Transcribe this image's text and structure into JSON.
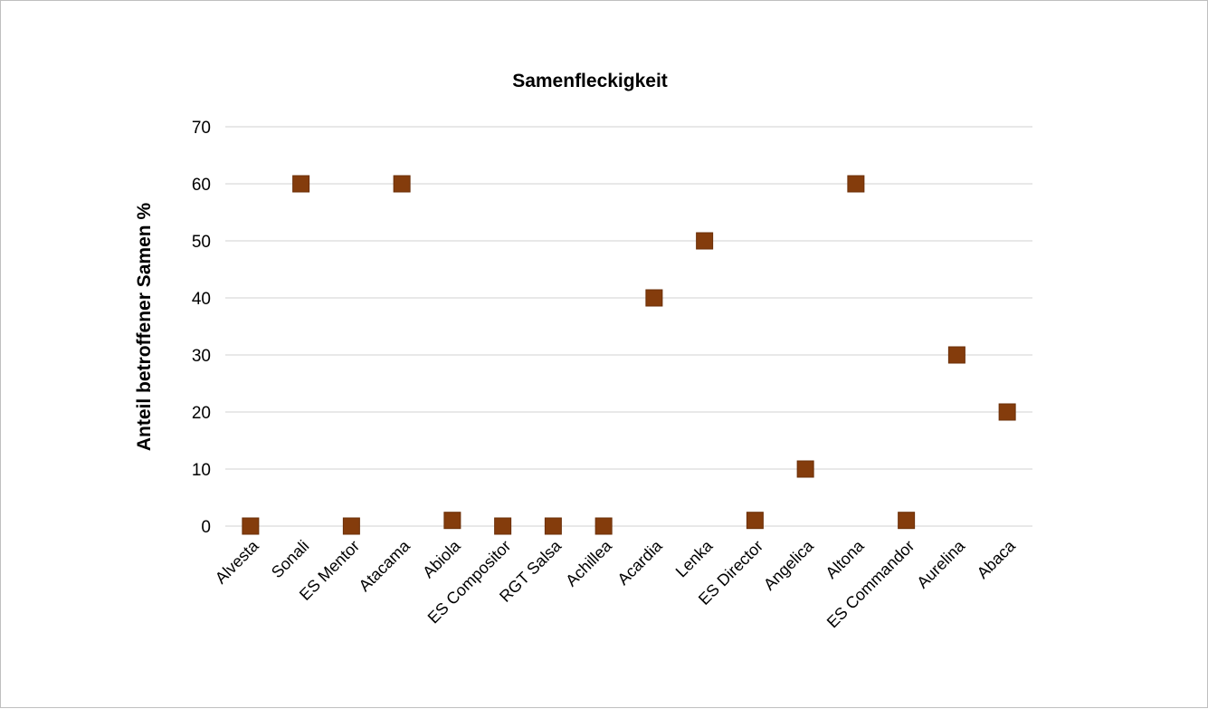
{
  "chart_data": {
    "type": "scatter",
    "title": "Samenfleckigkeit",
    "xlabel": "",
    "ylabel": "Anteil betroffener Samen  %",
    "categories": [
      "Alvesta",
      "Sonali",
      "ES Mentor",
      "Atacama",
      "Abiola",
      "ES Compositor",
      "RGT Salsa",
      "Achillea",
      "Acardia",
      "Lenka",
      "ES Director",
      "Angelica",
      "Altona",
      "ES Commandor",
      "Aurelina",
      "Abaca"
    ],
    "series": [
      {
        "values": [
          0,
          60,
          0,
          60,
          1,
          0,
          0,
          0,
          40,
          50,
          1,
          10,
          60,
          1,
          30,
          20
        ]
      }
    ],
    "ylim": [
      0,
      70
    ],
    "yticks": [
      0,
      10,
      20,
      30,
      40,
      50,
      60,
      70
    ],
    "grid": true,
    "legend": "none",
    "colors": {
      "marker": "#843C0C",
      "marker_edge": "#6b2f08",
      "grid": "#d9d9d9",
      "text": "#000000"
    }
  }
}
